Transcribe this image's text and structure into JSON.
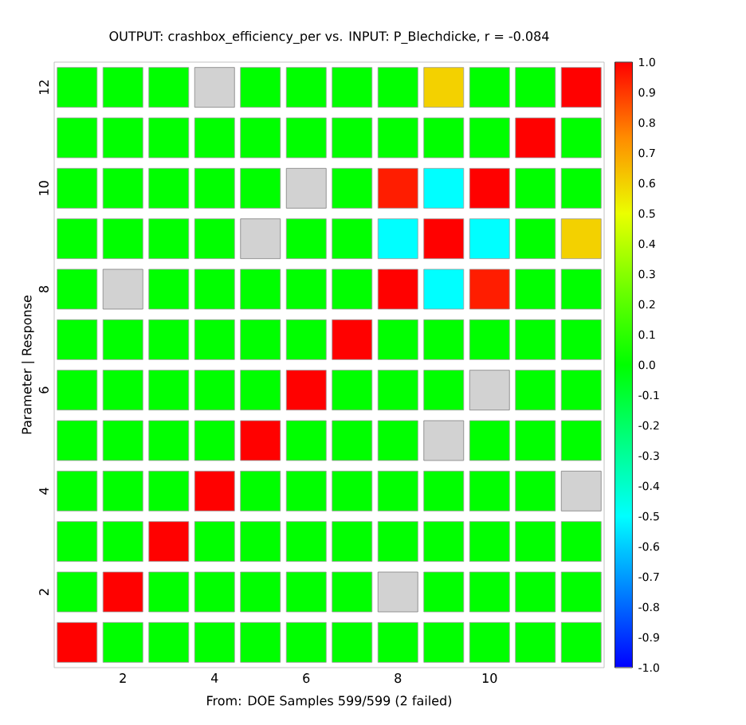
{
  "chart_data": {
    "type": "heatmap",
    "title": "OUTPUT: crashbox_efficiency_per vs. INPUT: P_Blechdicke, r = -0.084",
    "ylabel": "Parameter | Response",
    "annotations": [
      "From: DOE    Samples 599/599 (2 failed)"
    ],
    "categories": [
      null,
      "2",
      null,
      "4",
      null,
      "6",
      null,
      "8",
      null,
      "10",
      null,
      null
    ],
    "y_categories": [
      "12",
      null,
      "10",
      null,
      "8",
      null,
      "6",
      null,
      "4",
      null,
      "2",
      null
    ],
    "cells": [
      [
        0,
        0,
        0,
        null,
        0,
        0,
        0,
        0,
        0.6,
        0,
        0,
        1
      ],
      [
        0,
        0,
        0,
        0,
        0,
        0,
        0,
        0,
        0,
        0,
        1,
        0
      ],
      [
        0,
        0,
        0,
        0,
        0,
        null,
        0,
        0.95,
        -0.5,
        1,
        0,
        0
      ],
      [
        0,
        0,
        0,
        0,
        null,
        0,
        0,
        -0.5,
        1,
        -0.5,
        0,
        0.6
      ],
      [
        0,
        null,
        0,
        0,
        0,
        0,
        0,
        1,
        -0.5,
        0.95,
        0,
        0
      ],
      [
        0,
        0,
        0,
        0,
        0,
        0,
        1,
        0,
        0,
        0,
        0,
        0
      ],
      [
        0,
        0,
        0,
        0,
        0,
        1,
        0,
        0,
        0,
        null,
        0,
        0
      ],
      [
        0,
        0,
        0,
        0,
        1,
        0,
        0,
        0,
        null,
        0,
        0,
        0
      ],
      [
        0,
        0,
        0,
        1,
        0,
        0,
        0,
        0,
        0,
        0,
        0,
        null
      ],
      [
        0,
        0,
        1,
        0,
        0,
        0,
        0,
        0,
        0,
        0,
        0,
        0
      ],
      [
        0,
        1,
        0,
        0,
        0,
        0,
        0,
        null,
        0,
        0,
        0,
        0
      ],
      [
        1,
        0,
        0,
        0,
        0,
        0,
        0,
        0,
        0,
        0,
        0,
        0
      ]
    ],
    "clim": [
      -1,
      1
    ],
    "cticks": [
      {
        "value": 1,
        "label": "1.0"
      },
      {
        "value": 0.9,
        "label": "0.9"
      },
      {
        "value": 0.8,
        "label": "0.8"
      },
      {
        "value": 0.7,
        "label": "0.7"
      },
      {
        "value": 0.6,
        "label": "0.6"
      },
      {
        "value": 0.5,
        "label": "0.5"
      },
      {
        "value": 0.4,
        "label": "0.4"
      },
      {
        "value": 0.3,
        "label": "0.3"
      },
      {
        "value": 0.2,
        "label": "0.2"
      },
      {
        "value": 0.1,
        "label": "0.1"
      },
      {
        "value": 0,
        "label": "0.0"
      },
      {
        "value": -0.1,
        "label": "-0.1"
      },
      {
        "value": -0.2,
        "label": "-0.2"
      },
      {
        "value": -0.3,
        "label": "-0.3"
      },
      {
        "value": -0.4,
        "label": "-0.4"
      },
      {
        "value": -0.5,
        "label": "-0.5"
      },
      {
        "value": -0.6,
        "label": "-0.6"
      },
      {
        "value": -0.7,
        "label": "-0.7"
      },
      {
        "value": -0.8,
        "label": "-0.8"
      },
      {
        "value": -0.9,
        "label": "-0.9"
      },
      {
        "value": -1,
        "label": "-1.0"
      }
    ]
  }
}
